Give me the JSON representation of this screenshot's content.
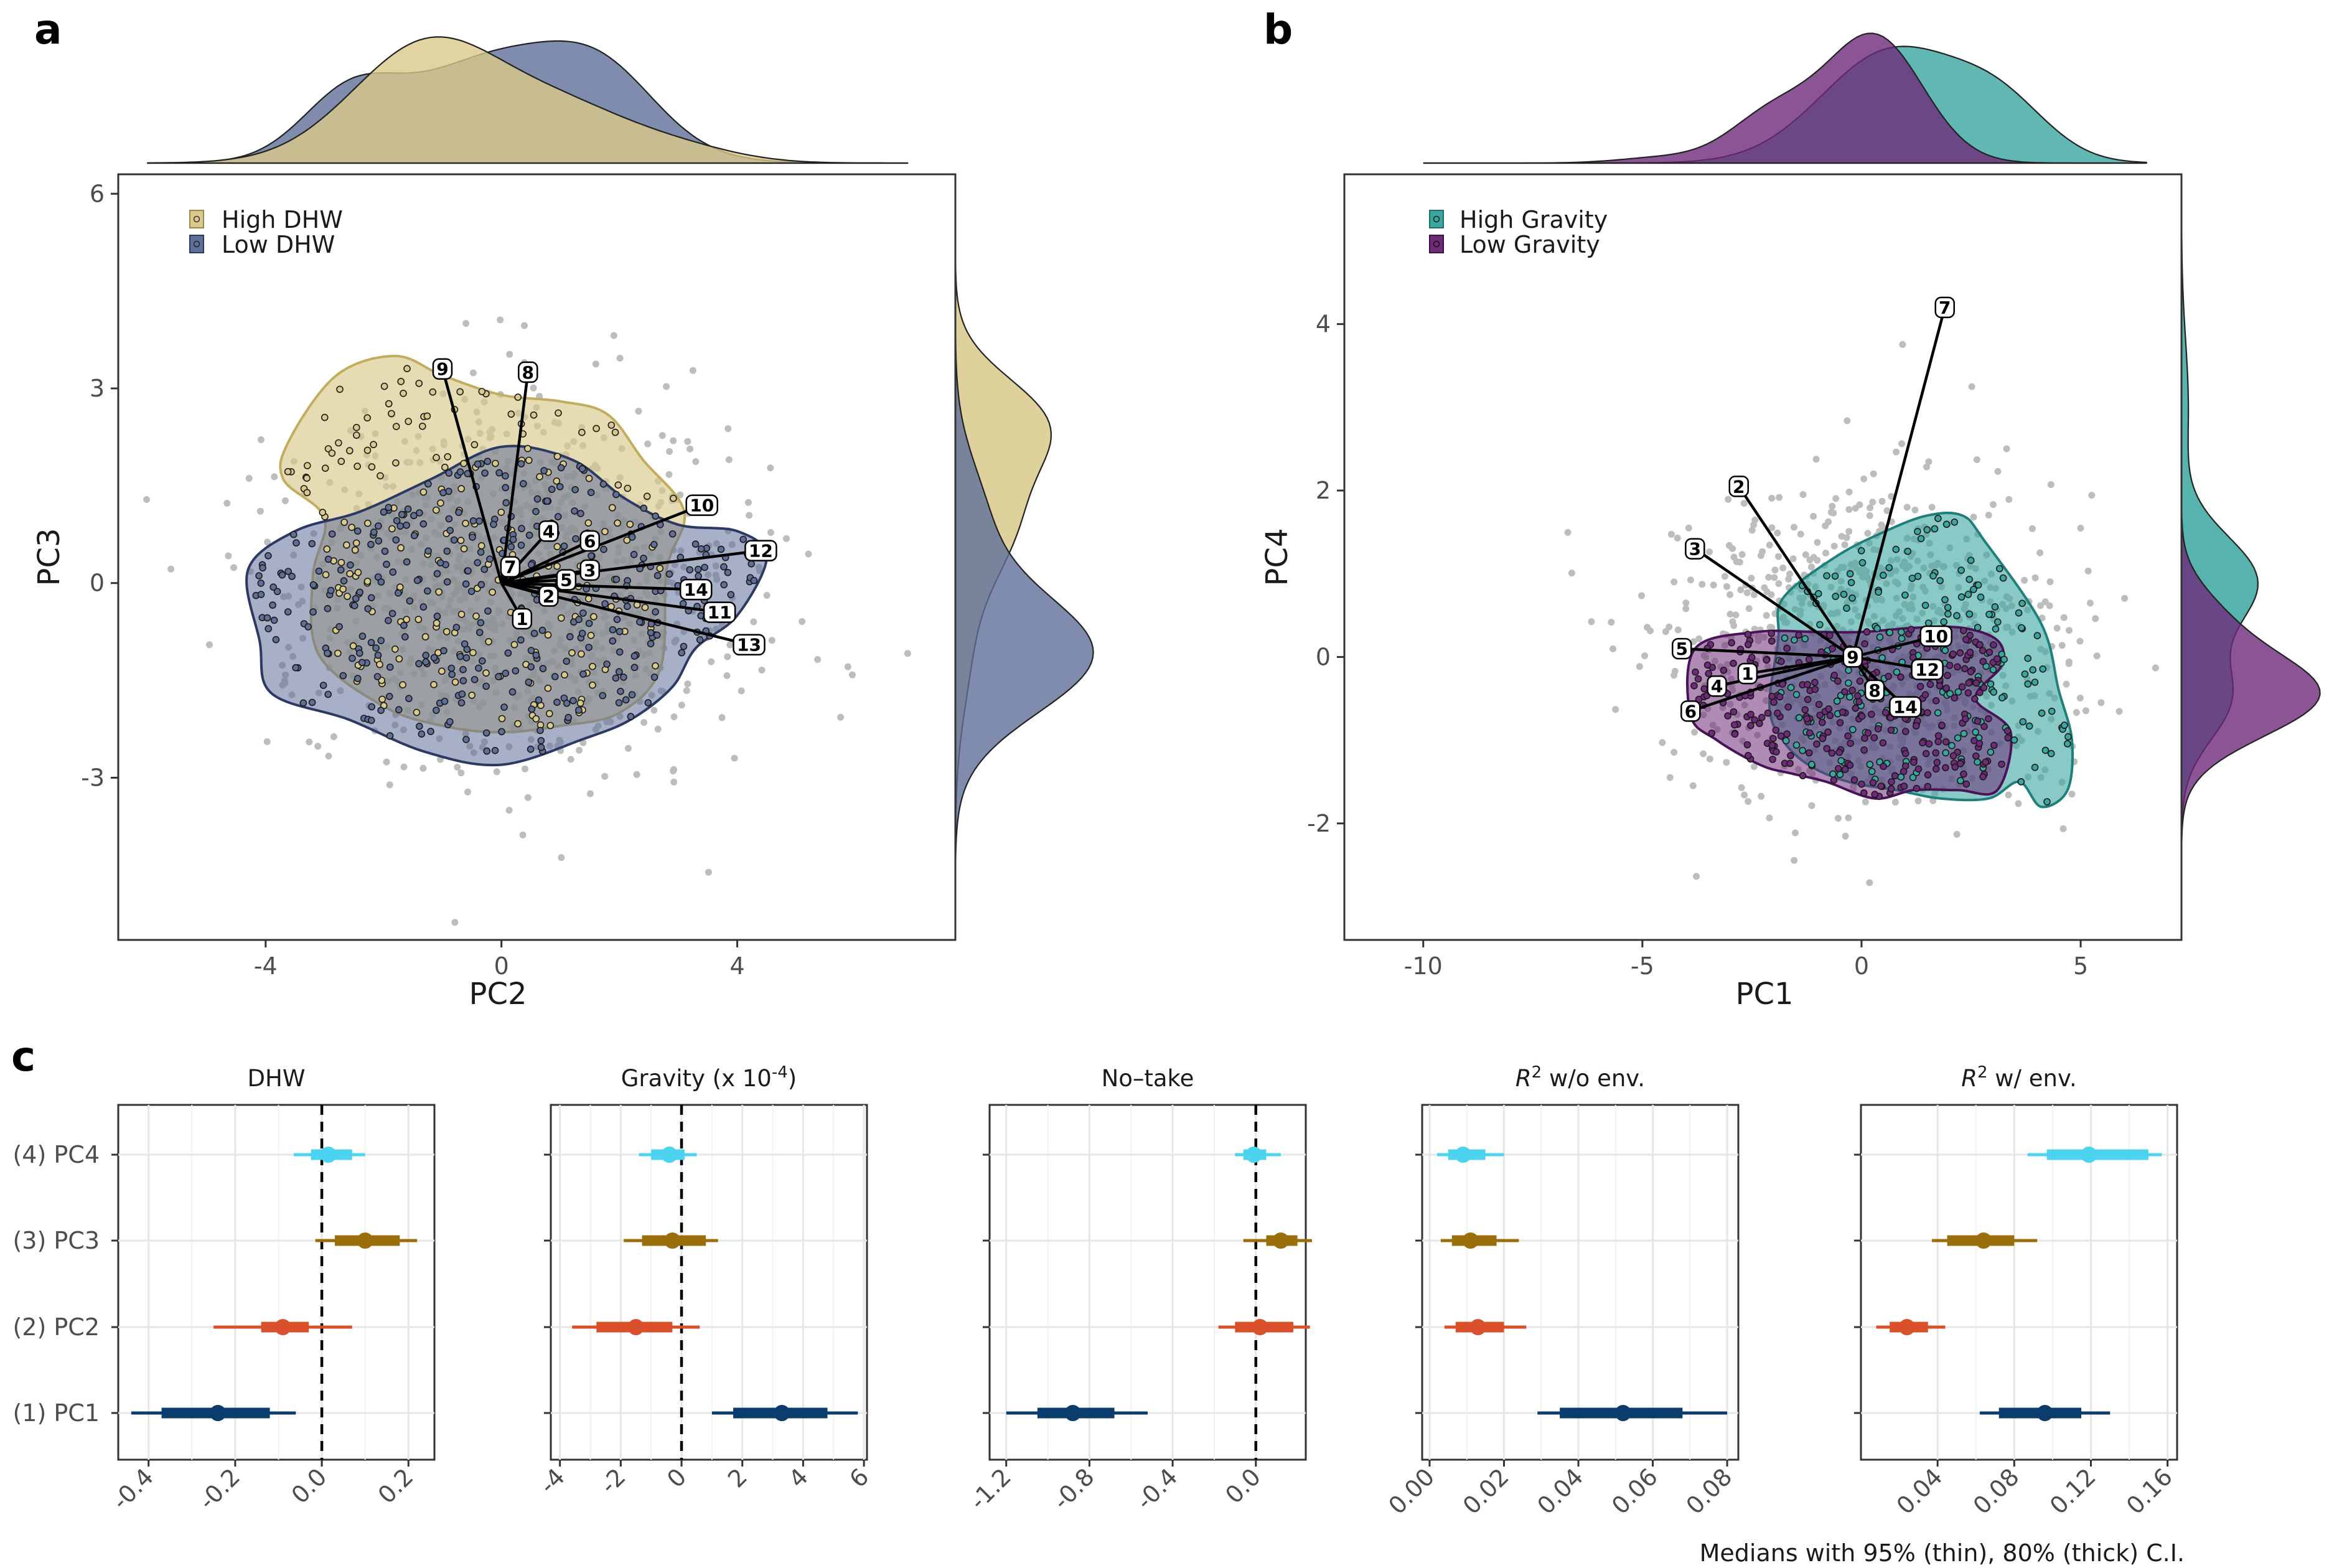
{
  "panels": {
    "a": {
      "letter": "a",
      "xlabel": "PC2",
      "ylabel": "PC3",
      "legend": [
        {
          "label": "High DHW",
          "color": "#d9c98a"
        },
        {
          "label": "Low DHW",
          "color": "#5f6f98"
        }
      ],
      "x_ticks": [
        "-4",
        "0",
        "4"
      ],
      "y_ticks": [
        "-3",
        "0",
        "3",
        "6"
      ]
    },
    "b": {
      "letter": "b",
      "xlabel": "PC1",
      "ylabel": "PC4",
      "legend": [
        {
          "label": "High Gravity",
          "color": "#3aa6a0"
        },
        {
          "label": "Low Gravity",
          "color": "#6e2b7a"
        }
      ],
      "x_ticks": [
        "-10",
        "-5",
        "0",
        "5"
      ],
      "y_ticks": [
        "-2",
        "0",
        "2",
        "4"
      ]
    },
    "c": {
      "letter": "c",
      "caption": "Medians with 95% (thin), 80% (thick) C.I.",
      "rows": [
        "(4) PC4",
        "(3) PC3",
        "(2) PC2",
        "(1) PC1"
      ],
      "row_colors": [
        "#4cd3f0",
        "#9a6e0a",
        "#d9502a",
        "#0b3c6e"
      ]
    }
  },
  "chart_data": [
    {
      "type": "scatter",
      "panel": "a",
      "xlabel": "PC2",
      "ylabel": "PC3",
      "xlim": [
        -6.5,
        7.7
      ],
      "ylim": [
        -5.5,
        6.3
      ],
      "series": [
        {
          "name": "High DHW",
          "color": "#d9c98a",
          "contour": [
            [
              -3.6,
              2.2
            ],
            [
              -2.8,
              3.2
            ],
            [
              -1.8,
              3.5
            ],
            [
              -1,
              3.2
            ],
            [
              0,
              2.9
            ],
            [
              1,
              2.8
            ],
            [
              1.8,
              2.6
            ],
            [
              2.4,
              1.9
            ],
            [
              3.1,
              1.1
            ],
            [
              2.8,
              0.2
            ],
            [
              2.7,
              -1.3
            ],
            [
              2,
              -2
            ],
            [
              1,
              -2.2
            ],
            [
              0,
              -2.3
            ],
            [
              -1,
              -2.2
            ],
            [
              -2,
              -1.9
            ],
            [
              -3.1,
              -1.1
            ],
            [
              -3.2,
              0.1
            ],
            [
              -3,
              1
            ],
            [
              -3.7,
              1.6
            ]
          ]
        },
        {
          "name": "Low DHW",
          "color": "#5f6f98",
          "contour": [
            [
              -4.3,
              0.2
            ],
            [
              -3.5,
              0.8
            ],
            [
              -2.4,
              1.1
            ],
            [
              -1.2,
              1.6
            ],
            [
              0,
              2.1
            ],
            [
              1.2,
              1.9
            ],
            [
              2.1,
              1.3
            ],
            [
              3,
              0.9
            ],
            [
              4,
              0.8
            ],
            [
              4.5,
              0.4
            ],
            [
              4,
              -0.5
            ],
            [
              3.3,
              -1
            ],
            [
              2.9,
              -1.6
            ],
            [
              2.2,
              -2.1
            ],
            [
              1.4,
              -2.4
            ],
            [
              0,
              -2.8
            ],
            [
              -1.3,
              -2.6
            ],
            [
              -2.6,
              -2.1
            ],
            [
              -3.9,
              -1.7
            ],
            [
              -4.1,
              -0.9
            ]
          ]
        }
      ],
      "loadings": [
        {
          "label": "1",
          "x": 0.35,
          "y": -0.55
        },
        {
          "label": "2",
          "x": 0.8,
          "y": -0.2
        },
        {
          "label": "4",
          "x": 0.8,
          "y": 0.8
        },
        {
          "label": "5",
          "x": 1.1,
          "y": 0.05
        },
        {
          "label": "3",
          "x": 1.5,
          "y": 0.2
        },
        {
          "label": "6",
          "x": 1.5,
          "y": 0.65
        },
        {
          "label": "7",
          "x": 0.15,
          "y": 0.25
        },
        {
          "label": "8",
          "x": 0.45,
          "y": 3.25
        },
        {
          "label": "9",
          "x": -1.0,
          "y": 3.3
        },
        {
          "label": "10",
          "x": 3.4,
          "y": 1.2
        },
        {
          "label": "11",
          "x": 3.7,
          "y": -0.45
        },
        {
          "label": "12",
          "x": 4.4,
          "y": 0.5
        },
        {
          "label": "13",
          "x": 4.2,
          "y": -0.95
        },
        {
          "label": "14",
          "x": 3.3,
          "y": -0.1
        }
      ]
    },
    {
      "type": "scatter",
      "panel": "b",
      "xlabel": "PC1",
      "ylabel": "PC4",
      "xlim": [
        -11.8,
        7.3
      ],
      "ylim": [
        -3.4,
        5.8
      ],
      "series": [
        {
          "name": "High Gravity",
          "color": "#3aa6a0",
          "contour": [
            [
              -1.8,
              0.7
            ],
            [
              -0.6,
              1.2
            ],
            [
              0.5,
              1.5
            ],
            [
              1.5,
              1.7
            ],
            [
              2.3,
              1.7
            ],
            [
              2.8,
              1.4
            ],
            [
              4.1,
              0.4
            ],
            [
              4.5,
              -0.4
            ],
            [
              4.8,
              -1
            ],
            [
              4.7,
              -1.6
            ],
            [
              4.1,
              -1.8
            ],
            [
              3.6,
              -1.5
            ],
            [
              2.9,
              -1.7
            ],
            [
              1.8,
              -1.7
            ],
            [
              0.8,
              -1.6
            ],
            [
              -0.3,
              -1.5
            ],
            [
              -1.2,
              -1.3
            ],
            [
              -1.8,
              -1
            ],
            [
              -2.1,
              -0.6
            ],
            [
              -1.9,
              0.2
            ]
          ]
        },
        {
          "name": "Low Gravity",
          "color": "#6e2b7a",
          "contour": [
            [
              -3.8,
              0.1
            ],
            [
              -2.4,
              0.3
            ],
            [
              -1,
              0.3
            ],
            [
              0,
              0.3
            ],
            [
              1.2,
              0.35
            ],
            [
              2.3,
              0.35
            ],
            [
              3.1,
              0.2
            ],
            [
              3.2,
              -0.1
            ],
            [
              2.6,
              -0.5
            ],
            [
              3.4,
              -0.9
            ],
            [
              3.1,
              -1.6
            ],
            [
              2.2,
              -1.6
            ],
            [
              1.2,
              -1.6
            ],
            [
              0.3,
              -1.7
            ],
            [
              -0.8,
              -1.5
            ],
            [
              -1.6,
              -1.4
            ],
            [
              -2.3,
              -1.3
            ],
            [
              -3.3,
              -1
            ],
            [
              -3.9,
              -0.7
            ]
          ]
        }
      ],
      "loadings": [
        {
          "label": "1",
          "x": -2.6,
          "y": -0.2
        },
        {
          "label": "2",
          "x": -2.8,
          "y": 2.05
        },
        {
          "label": "3",
          "x": -3.8,
          "y": 1.3
        },
        {
          "label": "4",
          "x": -3.3,
          "y": -0.35
        },
        {
          "label": "5",
          "x": -4.1,
          "y": 0.1
        },
        {
          "label": "6",
          "x": -3.9,
          "y": -0.65
        },
        {
          "label": "7",
          "x": 1.9,
          "y": 4.2
        },
        {
          "label": "8",
          "x": 0.3,
          "y": -0.4
        },
        {
          "label": "9",
          "x": -0.2,
          "y": 0.0
        },
        {
          "label": "10",
          "x": 1.7,
          "y": 0.25
        },
        {
          "label": "12",
          "x": 1.5,
          "y": -0.15
        },
        {
          "label": "14",
          "x": 1.0,
          "y": -0.6
        }
      ]
    },
    {
      "type": "interval",
      "panel": "c",
      "categories": [
        "(4) PC4",
        "(3) PC3",
        "(2) PC2",
        "(1) PC1"
      ],
      "facets": [
        {
          "title": "DHW",
          "xlim": [
            -0.47,
            0.26
          ],
          "ticks": [
            -0.4,
            -0.2,
            0.0,
            0.2
          ],
          "tick_labels": [
            "-0.4",
            "-0.2",
            "0.0",
            "0.2"
          ],
          "zero_line": true,
          "series": [
            {
              "category": "(4) PC4",
              "median": 0.015,
              "ci80": [
                -0.025,
                0.07
              ],
              "ci95": [
                -0.065,
                0.1
              ]
            },
            {
              "category": "(3) PC3",
              "median": 0.1,
              "ci80": [
                0.03,
                0.18
              ],
              "ci95": [
                -0.015,
                0.22
              ]
            },
            {
              "category": "(2) PC2",
              "median": -0.09,
              "ci80": [
                -0.14,
                -0.03
              ],
              "ci95": [
                -0.25,
                0.07
              ]
            },
            {
              "category": "(1) PC1",
              "median": -0.24,
              "ci80": [
                -0.37,
                -0.12
              ],
              "ci95": [
                -0.44,
                -0.06
              ]
            }
          ]
        },
        {
          "title": "Gravity (x 10",
          "title_sup": "-4",
          "title_end": ")",
          "xlim": [
            -4.3,
            6.1
          ],
          "ticks": [
            -4,
            -2,
            0,
            2,
            4,
            6
          ],
          "tick_labels": [
            "-4",
            "-2",
            "0",
            "2",
            "4",
            "6"
          ],
          "zero_line": true,
          "series": [
            {
              "category": "(4) PC4",
              "median": -0.4,
              "ci80": [
                -1.0,
                0.1
              ],
              "ci95": [
                -1.4,
                0.5
              ]
            },
            {
              "category": "(3) PC3",
              "median": -0.3,
              "ci80": [
                -1.3,
                0.8
              ],
              "ci95": [
                -1.9,
                1.2
              ]
            },
            {
              "category": "(2) PC2",
              "median": -1.5,
              "ci80": [
                -2.8,
                -0.3
              ],
              "ci95": [
                -3.6,
                0.6
              ]
            },
            {
              "category": "(1) PC1",
              "median": 3.3,
              "ci80": [
                1.7,
                4.8
              ],
              "ci95": [
                1.0,
                5.8
              ]
            }
          ]
        },
        {
          "title": "No–take",
          "xlim": [
            -1.28,
            0.24
          ],
          "ticks": [
            -1.2,
            -0.8,
            -0.4,
            0.0
          ],
          "tick_labels": [
            "-1.2",
            "-0.8",
            "-0.4",
            "0.0"
          ],
          "zero_line": true,
          "series": [
            {
              "category": "(4) PC4",
              "median": -0.01,
              "ci80": [
                -0.06,
                0.05
              ],
              "ci95": [
                -0.1,
                0.12
              ]
            },
            {
              "category": "(3) PC3",
              "median": 0.12,
              "ci80": [
                0.05,
                0.2
              ],
              "ci95": [
                -0.06,
                0.27
              ]
            },
            {
              "category": "(2) PC2",
              "median": 0.02,
              "ci80": [
                -0.1,
                0.18
              ],
              "ci95": [
                -0.18,
                0.26
              ]
            },
            {
              "category": "(1) PC1",
              "median": -0.88,
              "ci80": [
                -1.05,
                -0.68
              ],
              "ci95": [
                -1.2,
                -0.52
              ]
            }
          ]
        },
        {
          "title": "R",
          "title_sup": "2",
          "title_end": " w/o env.",
          "xlim": [
            -0.002,
            0.083
          ],
          "ticks": [
            0.0,
            0.02,
            0.04,
            0.06,
            0.08
          ],
          "tick_labels": [
            "0.00",
            "0.02",
            "0.04",
            "0.06",
            "0.08"
          ],
          "zero_line": false,
          "series": [
            {
              "category": "(4) PC4",
              "median": 0.009,
              "ci80": [
                0.005,
                0.015
              ],
              "ci95": [
                0.002,
                0.02
              ]
            },
            {
              "category": "(3) PC3",
              "median": 0.011,
              "ci80": [
                0.006,
                0.018
              ],
              "ci95": [
                0.003,
                0.024
              ]
            },
            {
              "category": "(2) PC2",
              "median": 0.013,
              "ci80": [
                0.007,
                0.02
              ],
              "ci95": [
                0.004,
                0.026
              ]
            },
            {
              "category": "(1) PC1",
              "median": 0.052,
              "ci80": [
                0.035,
                0.068
              ],
              "ci95": [
                0.029,
                0.08
              ]
            }
          ]
        },
        {
          "title": "R",
          "title_sup": "2",
          "title_end": " w/ env.",
          "xlim": [
            0.0,
            0.165
          ],
          "ticks": [
            0.04,
            0.08,
            0.12,
            0.16
          ],
          "tick_labels": [
            "0.04",
            "0.08",
            "0.12",
            "0.16"
          ],
          "zero_line": false,
          "series": [
            {
              "category": "(4) PC4",
              "median": 0.119,
              "ci80": [
                0.097,
                0.15
              ],
              "ci95": [
                0.087,
                0.157
              ]
            },
            {
              "category": "(3) PC3",
              "median": 0.064,
              "ci80": [
                0.045,
                0.08
              ],
              "ci95": [
                0.037,
                0.092
              ]
            },
            {
              "category": "(2) PC2",
              "median": 0.024,
              "ci80": [
                0.015,
                0.035
              ],
              "ci95": [
                0.008,
                0.044
              ]
            },
            {
              "category": "(1) PC1",
              "median": 0.096,
              "ci80": [
                0.072,
                0.115
              ],
              "ci95": [
                0.062,
                0.13
              ]
            }
          ]
        }
      ]
    }
  ]
}
